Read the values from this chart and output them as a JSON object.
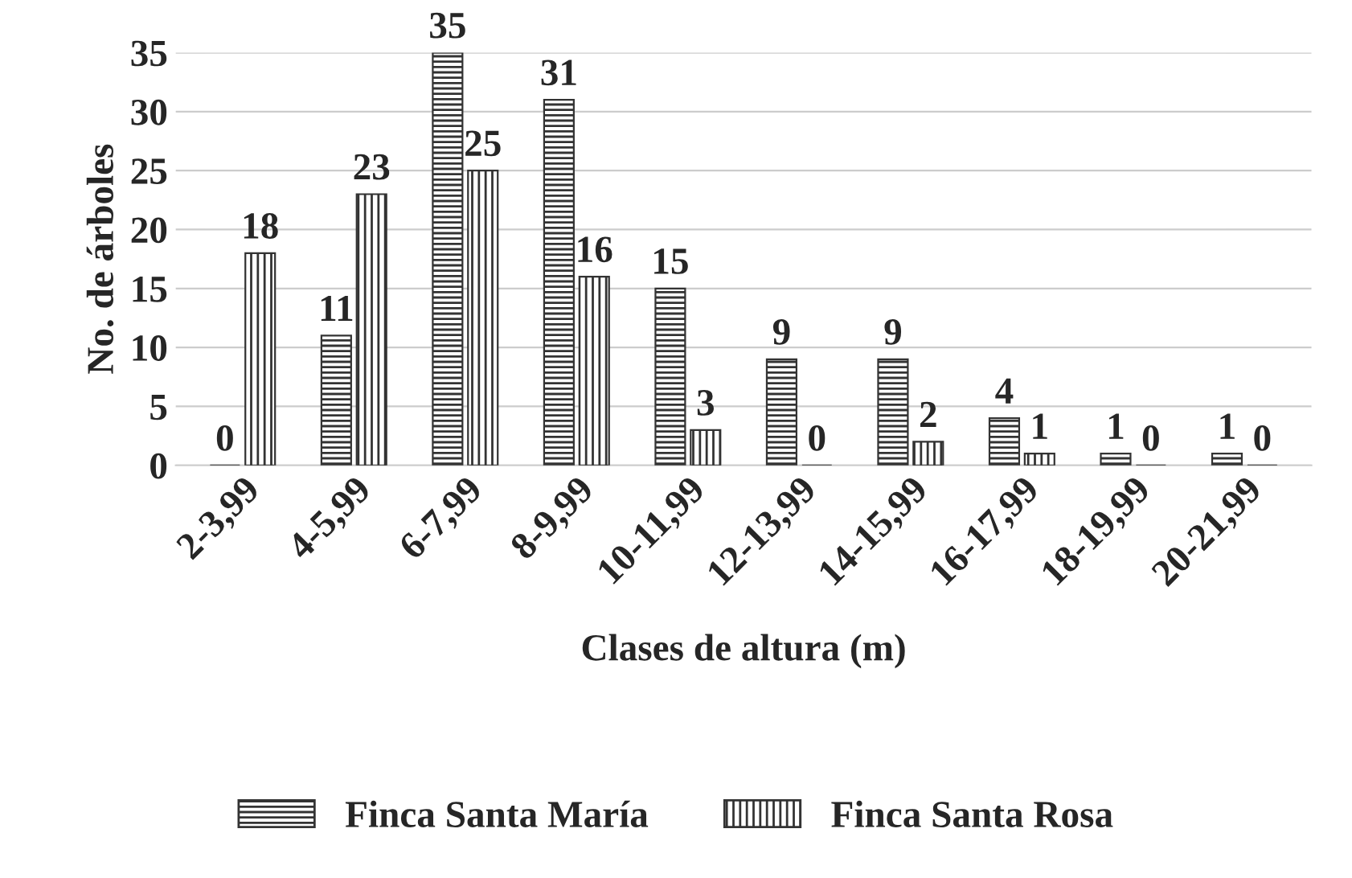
{
  "chart_data": {
    "type": "bar",
    "xlabel": "Clases de altura (m)",
    "ylabel": "No. de árboles",
    "categories": [
      "2-3,99",
      "4-5,99",
      "6-7,99",
      "8-9,99",
      "10-11,99",
      "12-13,99",
      "14-15,99",
      "16-17,99",
      "18-19,99",
      "20-21,99"
    ],
    "series": [
      {
        "name": "Finca Santa María",
        "color": "#333333",
        "values": [
          0,
          11,
          35,
          31,
          15,
          9,
          9,
          4,
          1,
          1
        ]
      },
      {
        "name": "Finca Santa Rosa",
        "color": "#333333",
        "values": [
          18,
          23,
          25,
          16,
          3,
          0,
          2,
          1,
          0,
          0
        ]
      }
    ],
    "ylim": [
      0,
      35
    ],
    "yticks": [
      0,
      5,
      10,
      15,
      20,
      25,
      30,
      35
    ],
    "grid": "y",
    "legend": "bottom",
    "data_labels": true
  }
}
